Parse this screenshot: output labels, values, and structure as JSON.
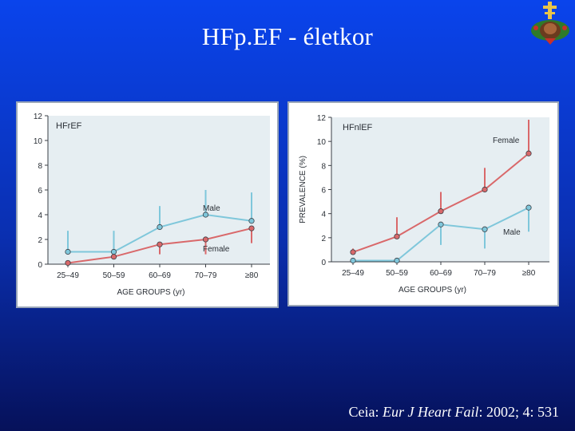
{
  "title": "HFp.EF - életkor",
  "citation": {
    "author": "Ceia: ",
    "journal": "Eur J Heart Fail",
    "ref": ": 2002; 4: 531"
  },
  "logo": {
    "icon": "cross-wreath-icon"
  },
  "colors": {
    "male": "#7fc7db",
    "female": "#d9686a",
    "bg_plot": "#e6eef2"
  },
  "chart_data": [
    {
      "type": "line",
      "panel_label": "HFrEF",
      "categories": [
        "25–49",
        "50–59",
        "60–69",
        "70–79",
        "≥80"
      ],
      "yticks": [
        "0",
        "2",
        "4",
        "6",
        "8",
        "10",
        "12"
      ],
      "ylim": [
        0,
        12
      ],
      "xlabel": "AGE GROUPS (yr)",
      "ylabel": "",
      "series": [
        {
          "name": "Male",
          "key": "male",
          "values": [
            1.0,
            1.0,
            3.0,
            4.0,
            3.5
          ],
          "err": [
            1.7,
            1.7,
            1.7,
            2.0,
            2.3
          ],
          "err_dir": "up"
        },
        {
          "name": "Female",
          "key": "female",
          "values": [
            0.1,
            0.6,
            1.6,
            2.0,
            2.9
          ],
          "err": [
            0,
            0,
            0.8,
            1.2,
            1.2
          ],
          "err_dir": "down"
        }
      ],
      "grid": false
    },
    {
      "type": "line",
      "panel_label": "HFnlEF",
      "categories": [
        "25–49",
        "50–59",
        "60–69",
        "70–79",
        "≥80"
      ],
      "yticks": [
        "0",
        "2",
        "4",
        "6",
        "8",
        "10",
        "12"
      ],
      "ylim": [
        0,
        12
      ],
      "xlabel": "AGE GROUPS (yr)",
      "ylabel": "PREVALENCE (%)",
      "series": [
        {
          "name": "Female",
          "key": "female",
          "values": [
            0.8,
            2.1,
            4.2,
            6.0,
            9.0
          ],
          "err": [
            0.3,
            1.6,
            1.6,
            1.8,
            2.8
          ],
          "err_dir": "up"
        },
        {
          "name": "Male",
          "key": "male",
          "values": [
            0.1,
            0.1,
            3.1,
            2.7,
            4.5
          ],
          "err": [
            0,
            0,
            1.7,
            1.6,
            2.0
          ],
          "err_dir": "down"
        }
      ],
      "grid": false
    }
  ]
}
